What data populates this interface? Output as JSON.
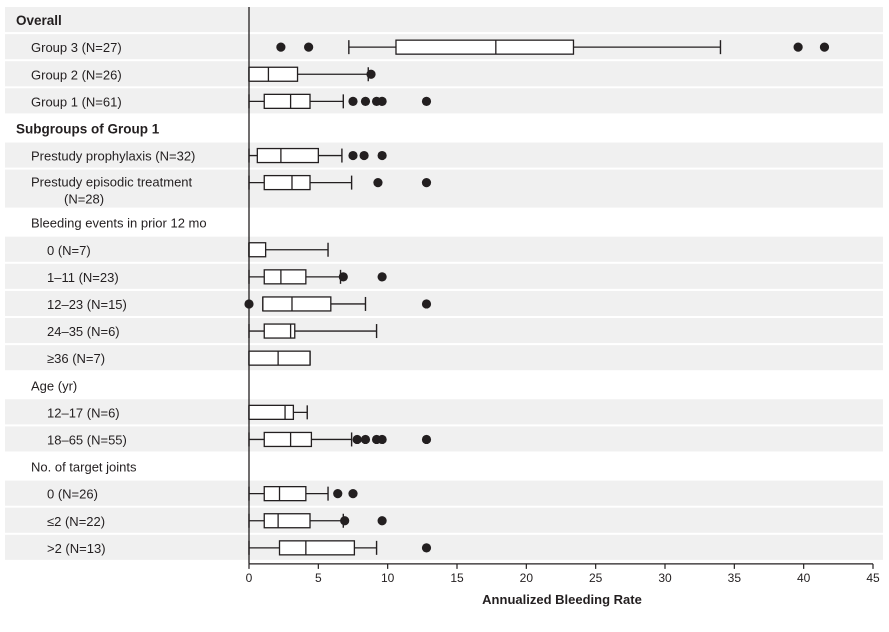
{
  "chart_data": {
    "type": "boxplot",
    "orientation": "horizontal",
    "xlabel": "Annualized Bleeding Rate",
    "xlim": [
      0,
      45
    ],
    "xticks": [
      0,
      5,
      10,
      15,
      20,
      25,
      30,
      35,
      40,
      45
    ],
    "rows": [
      {
        "label": "Overall",
        "kind": "header",
        "shaded": true
      },
      {
        "label": "Group 3 (N=27)",
        "kind": "data",
        "shaded": true,
        "whisker_low": 7.2,
        "q1": 10.6,
        "median": 17.8,
        "q3": 23.4,
        "whisker_high": 34.0,
        "outliers": [
          2.3,
          4.3,
          39.6,
          41.5
        ]
      },
      {
        "label": "Group 2 (N=26)",
        "kind": "data",
        "shaded": true,
        "whisker_low": 0,
        "q1": 0,
        "median": 1.4,
        "q3": 3.5,
        "whisker_high": 8.6,
        "outliers": [
          8.8
        ]
      },
      {
        "label": "Group 1 (N=61)",
        "kind": "data",
        "shaded": true,
        "whisker_low": 0,
        "q1": 1.1,
        "median": 3.0,
        "q3": 4.4,
        "whisker_high": 6.8,
        "outliers": [
          7.5,
          8.4,
          9.2,
          9.6,
          12.8
        ]
      },
      {
        "label": "Subgroups of Group 1",
        "kind": "header",
        "shaded": false
      },
      {
        "label": "Prestudy prophylaxis (N=32)",
        "kind": "data",
        "shaded": true,
        "whisker_low": 0,
        "q1": 0.6,
        "median": 2.3,
        "q3": 5.0,
        "whisker_high": 6.7,
        "outliers": [
          7.5,
          8.3,
          9.6
        ]
      },
      {
        "label": "Prestudy episodic treatment",
        "label2": "(N=28)",
        "kind": "data",
        "shaded": true,
        "tall": true,
        "whisker_low": 0,
        "q1": 1.1,
        "median": 3.1,
        "q3": 4.4,
        "whisker_high": 7.4,
        "outliers": [
          9.3,
          12.8
        ]
      },
      {
        "label": "Bleeding events in prior 12 mo",
        "kind": "subheader",
        "shaded": false
      },
      {
        "label": "0 (N=7)",
        "kind": "data",
        "shaded": true,
        "indent": true,
        "whisker_low": 0,
        "q1": 0,
        "median": 0,
        "q3": 1.2,
        "whisker_high": 5.7,
        "outliers": []
      },
      {
        "label": "1–11 (N=23)",
        "kind": "data",
        "shaded": true,
        "indent": true,
        "whisker_low": 0,
        "q1": 1.1,
        "median": 2.3,
        "q3": 4.1,
        "whisker_high": 6.6,
        "outliers": [
          6.8,
          9.6
        ]
      },
      {
        "label": "12–23 (N=15)",
        "kind": "data",
        "shaded": true,
        "indent": true,
        "whisker_low": 1.0,
        "q1": 1.0,
        "median": 3.1,
        "q3": 5.9,
        "whisker_high": 8.4,
        "outliers": [
          0,
          12.8
        ]
      },
      {
        "label": "24–35 (N=6)",
        "kind": "data",
        "shaded": true,
        "indent": true,
        "whisker_low": 0,
        "q1": 1.1,
        "median": 3.0,
        "q3": 3.3,
        "whisker_high": 9.2,
        "outliers": []
      },
      {
        "label": "≥36 (N=7)",
        "kind": "data",
        "shaded": true,
        "indent": true,
        "whisker_low": 0,
        "q1": 0,
        "median": 2.1,
        "q3": 4.4,
        "whisker_high": 4.4,
        "outliers": []
      },
      {
        "label": "Age (yr)",
        "kind": "subheader",
        "shaded": false
      },
      {
        "label": "12–17 (N=6)",
        "kind": "data",
        "shaded": true,
        "indent": true,
        "whisker_low": 0,
        "q1": 0,
        "median": 2.6,
        "q3": 3.2,
        "whisker_high": 4.2,
        "outliers": []
      },
      {
        "label": "18–65 (N=55)",
        "kind": "data",
        "shaded": true,
        "indent": true,
        "whisker_low": 0,
        "q1": 1.1,
        "median": 3.0,
        "q3": 4.5,
        "whisker_high": 7.4,
        "outliers": [
          7.8,
          8.4,
          9.2,
          9.6,
          12.8
        ]
      },
      {
        "label": "No. of target joints",
        "kind": "subheader",
        "shaded": false
      },
      {
        "label": "0 (N=26)",
        "kind": "data",
        "shaded": true,
        "indent": true,
        "whisker_low": 0,
        "q1": 1.1,
        "median": 2.2,
        "q3": 4.1,
        "whisker_high": 5.7,
        "outliers": [
          6.4,
          7.5
        ]
      },
      {
        "label": "≤2 (N=22)",
        "kind": "data",
        "shaded": true,
        "indent": true,
        "whisker_low": 0,
        "q1": 1.1,
        "median": 2.1,
        "q3": 4.4,
        "whisker_high": 6.8,
        "outliers": [
          6.9,
          9.6
        ]
      },
      {
        "label": ">2 (N=13)",
        "kind": "data",
        "shaded": true,
        "indent": true,
        "whisker_low": 0,
        "q1": 2.2,
        "median": 4.1,
        "q3": 7.6,
        "whisker_high": 9.2,
        "outliers": [
          12.8
        ]
      }
    ]
  },
  "colors": {
    "row_shade": "#f0f0f0",
    "ink": "#231f20",
    "box_fill": "#ffffff"
  }
}
